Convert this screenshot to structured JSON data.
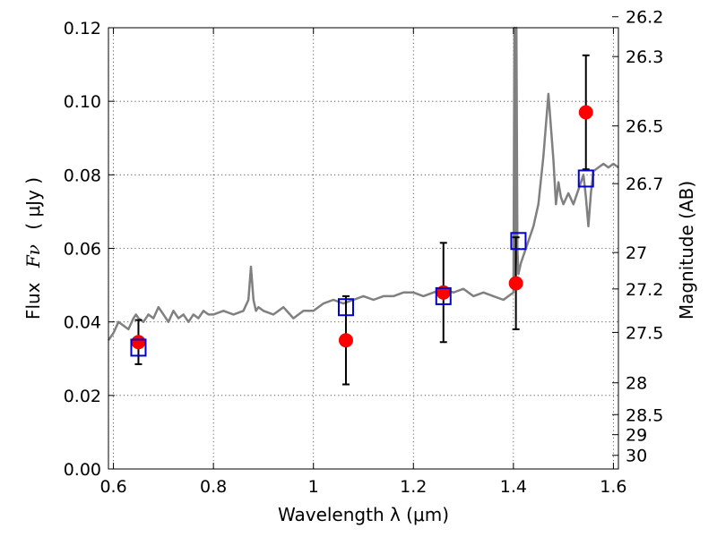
{
  "chart_data": {
    "type": "scatter",
    "xlabel": "Wavelength  λ (μm)",
    "ylabel_text": "Flux",
    "ylabel_symbol": "Fν",
    "ylabel_unit": "( μJy )",
    "y2label": "Magnitude (AB)",
    "xlim": [
      0.59,
      1.61
    ],
    "ylim": [
      0.0,
      0.12
    ],
    "grid": true,
    "x_ticks": [
      {
        "value": 0.6,
        "label": "0.6"
      },
      {
        "value": 0.8,
        "label": "0.8"
      },
      {
        "value": 1.0,
        "label": "1"
      },
      {
        "value": 1.2,
        "label": "1.2"
      },
      {
        "value": 1.4,
        "label": "1.4"
      },
      {
        "value": 1.6,
        "label": "1.6"
      }
    ],
    "y_ticks": [
      {
        "value": 0.0,
        "label": "0.00"
      },
      {
        "value": 0.02,
        "label": "0.02"
      },
      {
        "value": 0.04,
        "label": "0.04"
      },
      {
        "value": 0.06,
        "label": "0.06"
      },
      {
        "value": 0.08,
        "label": "0.08"
      },
      {
        "value": 0.1,
        "label": "0.10"
      },
      {
        "value": 0.12,
        "label": "0.12"
      }
    ],
    "y2_ticks": [
      {
        "value": 26.2,
        "label": "26.2"
      },
      {
        "value": 26.3,
        "label": "26.3"
      },
      {
        "value": 26.5,
        "label": "26.5"
      },
      {
        "value": 26.7,
        "label": "26.7"
      },
      {
        "value": 27.0,
        "label": "27"
      },
      {
        "value": 27.2,
        "label": "27.2"
      },
      {
        "value": 27.5,
        "label": "27.5"
      },
      {
        "value": 28.0,
        "label": "28"
      },
      {
        "value": 28.5,
        "label": "28.5"
      },
      {
        "value": 29.0,
        "label": "29"
      },
      {
        "value": 30.0,
        "label": "30"
      }
    ],
    "series": [
      {
        "kind": "line",
        "color": "#808080",
        "x": [
          0.59,
          0.6,
          0.61,
          0.62,
          0.63,
          0.64,
          0.645,
          0.65,
          0.66,
          0.67,
          0.68,
          0.69,
          0.7,
          0.71,
          0.72,
          0.73,
          0.74,
          0.75,
          0.76,
          0.77,
          0.78,
          0.79,
          0.8,
          0.82,
          0.84,
          0.86,
          0.87,
          0.875,
          0.88,
          0.885,
          0.89,
          0.9,
          0.92,
          0.94,
          0.96,
          0.98,
          1.0,
          1.02,
          1.04,
          1.06,
          1.08,
          1.1,
          1.12,
          1.14,
          1.16,
          1.18,
          1.2,
          1.22,
          1.24,
          1.26,
          1.28,
          1.3,
          1.32,
          1.34,
          1.36,
          1.38,
          1.39,
          1.4,
          1.402,
          1.404,
          1.406,
          1.408,
          1.41,
          1.415,
          1.42,
          1.43,
          1.44,
          1.45,
          1.46,
          1.47,
          1.48,
          1.485,
          1.49,
          1.495,
          1.5,
          1.51,
          1.52,
          1.53,
          1.54,
          1.545,
          1.55,
          1.555,
          1.56,
          1.57,
          1.58,
          1.59,
          1.6,
          1.61
        ],
        "y": [
          0.035,
          0.037,
          0.04,
          0.039,
          0.038,
          0.041,
          0.042,
          0.041,
          0.04,
          0.042,
          0.041,
          0.044,
          0.042,
          0.04,
          0.043,
          0.041,
          0.042,
          0.04,
          0.042,
          0.041,
          0.043,
          0.042,
          0.042,
          0.043,
          0.042,
          0.043,
          0.046,
          0.055,
          0.046,
          0.043,
          0.044,
          0.043,
          0.042,
          0.044,
          0.041,
          0.043,
          0.043,
          0.045,
          0.046,
          0.045,
          0.046,
          0.047,
          0.046,
          0.047,
          0.047,
          0.048,
          0.048,
          0.047,
          0.048,
          0.049,
          0.048,
          0.049,
          0.047,
          0.048,
          0.047,
          0.046,
          0.047,
          0.048,
          0.12,
          0.049,
          0.12,
          0.06,
          0.053,
          0.056,
          0.058,
          0.062,
          0.066,
          0.072,
          0.085,
          0.102,
          0.084,
          0.072,
          0.078,
          0.074,
          0.072,
          0.075,
          0.072,
          0.076,
          0.08,
          0.074,
          0.066,
          0.075,
          0.081,
          0.082,
          0.083,
          0.082,
          0.083,
          0.082
        ]
      },
      {
        "kind": "points",
        "marker": "circle",
        "color": "#ff0000",
        "x": [
          0.65,
          1.065,
          1.26,
          1.405,
          1.545
        ],
        "y": [
          0.0345,
          0.035,
          0.048,
          0.0505,
          0.097
        ],
        "yerr": [
          0.006,
          0.012,
          0.0135,
          0.0125,
          0.0155
        ]
      },
      {
        "kind": "points",
        "marker": "square",
        "color": "#0000cc",
        "x": [
          0.65,
          1.065,
          1.26,
          1.41,
          1.545
        ],
        "y": [
          0.033,
          0.044,
          0.047,
          0.062,
          0.079
        ]
      }
    ]
  }
}
